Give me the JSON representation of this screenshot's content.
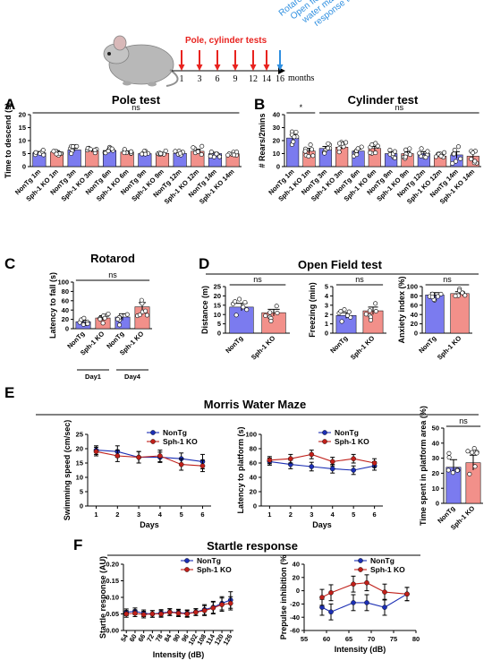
{
  "timeline": {
    "ticks": [
      "1",
      "3",
      "6",
      "9",
      "12",
      "14",
      "16"
    ],
    "unit": "months",
    "red_label": "Pole, cylinder tests",
    "blue_label": "Rotarod, Open field, Morris water maze, Startle response tests",
    "colors": {
      "red": "#e8231f",
      "blue": "#2f8fe0"
    }
  },
  "letters": {
    "A": "A",
    "B": "B",
    "C": "C",
    "D": "D",
    "E": "E",
    "F": "F"
  },
  "section_titles": {
    "E": "Morris Water Maze",
    "F": "Startle response"
  },
  "colors": {
    "nontg": "#7b7bef",
    "ko": "#f2908a",
    "line_nontg": "#1c2fb4",
    "line_ko": "#c0201a"
  },
  "chart_data": [
    {
      "id": "pole",
      "type": "bar",
      "title": "Pole test",
      "ylabel": "Time to descend (s)",
      "ylim": [
        0,
        20
      ],
      "yticks": [
        0,
        5,
        10,
        15,
        20
      ],
      "categories": [
        "NonTg 1m",
        "Sph-1 KO 1m",
        "NonTg 3m",
        "Sph-1 KO 3m",
        "NonTg 6m",
        "Sph-1 KO 6m",
        "NonTg 9m",
        "Sph-1 KO 9m",
        "NonTg 12m",
        "Sph-1 KO 12m",
        "NonTg 14m",
        "Sph-1 KO 14m"
      ],
      "values": [
        5.3,
        5.6,
        6.4,
        6.0,
        6.2,
        5.6,
        5.0,
        5.1,
        5.1,
        5.9,
        5.0,
        4.9
      ],
      "errors": [
        0.5,
        0.5,
        0.6,
        0.5,
        0.5,
        0.4,
        0.4,
        0.4,
        0.4,
        0.8,
        0.5,
        0.3
      ],
      "annotations": [
        {
          "text": "ns",
          "from": 0,
          "to": 11
        }
      ]
    },
    {
      "id": "cylinder",
      "type": "bar",
      "title": "Cylinder test",
      "ylabel": "# Rears/2mins",
      "ylim": [
        0,
        40
      ],
      "yticks": [
        0,
        10,
        20,
        30,
        40
      ],
      "categories": [
        "NonTg 1m",
        "Sph-1 KO 1m",
        "NonTg 3m",
        "Sph-1 KO 3m",
        "NonTg 6m",
        "Sph-1 KO 6m",
        "NonTg 9m",
        "Sph-1 KO 9m",
        "NonTg 12m",
        "Sph-1 KO 12m",
        "NonTg 14m",
        "Sph-1 KO 14m"
      ],
      "values": [
        22,
        12,
        14,
        15,
        12,
        14,
        10,
        10,
        10,
        8,
        9,
        8
      ],
      "errors": [
        2.5,
        2,
        1.5,
        1.5,
        1.5,
        1.5,
        1.5,
        1.5,
        1.5,
        1.2,
        2.5,
        2.5
      ],
      "annotations": [
        {
          "text": "*",
          "from": 0,
          "to": 1
        },
        {
          "text": "ns",
          "from": 2,
          "to": 11
        }
      ]
    },
    {
      "id": "rotarod",
      "type": "bar",
      "title": "Rotarod",
      "ylabel": "Latency to fall (s)",
      "ylim": [
        0,
        100
      ],
      "yticks": [
        0,
        20,
        40,
        60,
        80,
        100
      ],
      "categories": [
        "NonTg",
        "Sph-1 KO",
        "NonTg",
        "Sph-1 KO"
      ],
      "groups": [
        "Day1",
        "Day4"
      ],
      "values": [
        15,
        23,
        25,
        47
      ],
      "errors": [
        3,
        5,
        7,
        9
      ],
      "annotations": [
        {
          "text": "ns",
          "from": 0,
          "to": 3
        }
      ]
    },
    {
      "id": "of_distance",
      "type": "bar",
      "ylabel": "Distance (m)",
      "ylim": [
        0,
        25
      ],
      "yticks": [
        0,
        5,
        10,
        15,
        20,
        25
      ],
      "categories": [
        "NonTg",
        "Sph-1 KO"
      ],
      "values": [
        14,
        11
      ],
      "errors": [
        2,
        1.8
      ],
      "annotations": [
        {
          "text": "ns",
          "from": 0,
          "to": 1
        }
      ]
    },
    {
      "id": "of_freezing",
      "type": "bar",
      "ylabel": "Freezing (min)",
      "ylim": [
        0,
        5
      ],
      "yticks": [
        0,
        1,
        2,
        3,
        4,
        5
      ],
      "categories": [
        "NonTg",
        "Sph-1 KO"
      ],
      "values": [
        1.9,
        2.4
      ],
      "errors": [
        0.3,
        0.4
      ],
      "annotations": [
        {
          "text": "ns",
          "from": 0,
          "to": 1
        }
      ]
    },
    {
      "id": "of_anxiety",
      "type": "bar",
      "ylabel": "Anxiety index (%)",
      "ylim": [
        0,
        100
      ],
      "yticks": [
        0,
        20,
        40,
        60,
        80,
        100
      ],
      "categories": [
        "NonTg",
        "Sph-1 KO"
      ],
      "values": [
        82,
        85
      ],
      "errors": [
        5,
        4
      ],
      "annotations": [
        {
          "text": "ns",
          "from": 0,
          "to": 1
        }
      ]
    },
    {
      "id": "mwm_speed",
      "type": "line",
      "ylabel": "Swimming speed (cm/sec)",
      "xlabel": "Days",
      "x": [
        1,
        2,
        3,
        4,
        5,
        6
      ],
      "xlim": [
        0.6,
        6.4
      ],
      "ylim": [
        0,
        25
      ],
      "yticks": [
        0,
        5,
        10,
        15,
        20,
        25
      ],
      "series": [
        {
          "name": "NonTg",
          "values": [
            19.5,
            19.0,
            17.0,
            17.0,
            16.5,
            15.5
          ],
          "errors": [
            1.5,
            2.0,
            2.0,
            1.8,
            2.0,
            2.5
          ]
        },
        {
          "name": "Sph-1 KO",
          "values": [
            19.0,
            17.5,
            17.0,
            17.5,
            14.5,
            14.0
          ],
          "errors": [
            1.5,
            2.0,
            2.0,
            2.0,
            2.0,
            2.0
          ]
        }
      ]
    },
    {
      "id": "mwm_latency",
      "type": "line",
      "ylabel": "Latency to platform (s)",
      "xlabel": "Days",
      "x": [
        1,
        2,
        3,
        4,
        5,
        6
      ],
      "xlim": [
        0.6,
        6.4
      ],
      "ylim": [
        0,
        100
      ],
      "yticks": [
        0,
        20,
        40,
        60,
        80,
        100
      ],
      "series": [
        {
          "name": "NonTg",
          "values": [
            62,
            58,
            55,
            52,
            50,
            56
          ],
          "errors": [
            5,
            6,
            6,
            6,
            6,
            6
          ]
        },
        {
          "name": "Sph-1 KO",
          "values": [
            64,
            66,
            72,
            62,
            66,
            60
          ],
          "errors": [
            5,
            6,
            6,
            6,
            6,
            6
          ]
        }
      ]
    },
    {
      "id": "mwm_platform",
      "type": "bar",
      "ylabel": "Time spent in platform area (%)",
      "ylim": [
        0,
        50
      ],
      "yticks": [
        0,
        10,
        20,
        30,
        40,
        50
      ],
      "categories": [
        "NonTg",
        "Sph-1 KO"
      ],
      "values": [
        24,
        27
      ],
      "errors": [
        5,
        5
      ],
      "annotations": [
        {
          "text": "ns",
          "from": 0,
          "to": 1
        }
      ]
    },
    {
      "id": "startle",
      "type": "line",
      "ylabel": "Startle response (AU)",
      "xlabel": "Intensity (dB)",
      "x": [
        54,
        60,
        66,
        72,
        78,
        84,
        90,
        96,
        102,
        108,
        114,
        120,
        126
      ],
      "xlim": [
        52,
        128
      ],
      "ylim": [
        0,
        0.2
      ],
      "yticks": [
        0,
        0.05,
        0.1,
        0.15,
        0.2
      ],
      "ytick_labels": [
        "0.00",
        "0.05",
        "0.10",
        "0.15",
        "0.20"
      ],
      "series": [
        {
          "name": "NonTg",
          "values": [
            0.055,
            0.058,
            0.052,
            0.05,
            0.053,
            0.056,
            0.054,
            0.052,
            0.056,
            0.063,
            0.07,
            0.082,
            0.092
          ],
          "errors": [
            0.01,
            0.01,
            0.01,
            0.01,
            0.01,
            0.01,
            0.01,
            0.01,
            0.01,
            0.015,
            0.018,
            0.02,
            0.025
          ]
        },
        {
          "name": "Sph-1 KO",
          "values": [
            0.05,
            0.052,
            0.048,
            0.05,
            0.05,
            0.055,
            0.052,
            0.05,
            0.055,
            0.06,
            0.068,
            0.078,
            0.082
          ],
          "errors": [
            0.01,
            0.01,
            0.01,
            0.01,
            0.01,
            0.01,
            0.01,
            0.01,
            0.01,
            0.015,
            0.018,
            0.02,
            0.02
          ]
        }
      ]
    },
    {
      "id": "ppi",
      "type": "line",
      "ylabel": "Prepulse inhibition (%",
      "xlabel": "Intensity (dB)",
      "x": [
        59,
        61,
        66,
        69,
        73,
        78
      ],
      "xlim": [
        55,
        80
      ],
      "xticks": [
        55,
        60,
        65,
        70,
        75,
        80
      ],
      "ylim": [
        -60,
        40
      ],
      "yticks": [
        -60,
        -40,
        -20,
        0,
        20,
        40
      ],
      "series": [
        {
          "name": "NonTg",
          "values": [
            -25,
            -32,
            -18,
            -18,
            -25,
            -5
          ],
          "errors": [
            12,
            12,
            12,
            12,
            12,
            10
          ]
        },
        {
          "name": "Sph-1 KO",
          "values": [
            -10,
            -3,
            10,
            12,
            -2,
            -5
          ],
          "errors": [
            12,
            12,
            12,
            12,
            12,
            10
          ]
        }
      ]
    }
  ]
}
